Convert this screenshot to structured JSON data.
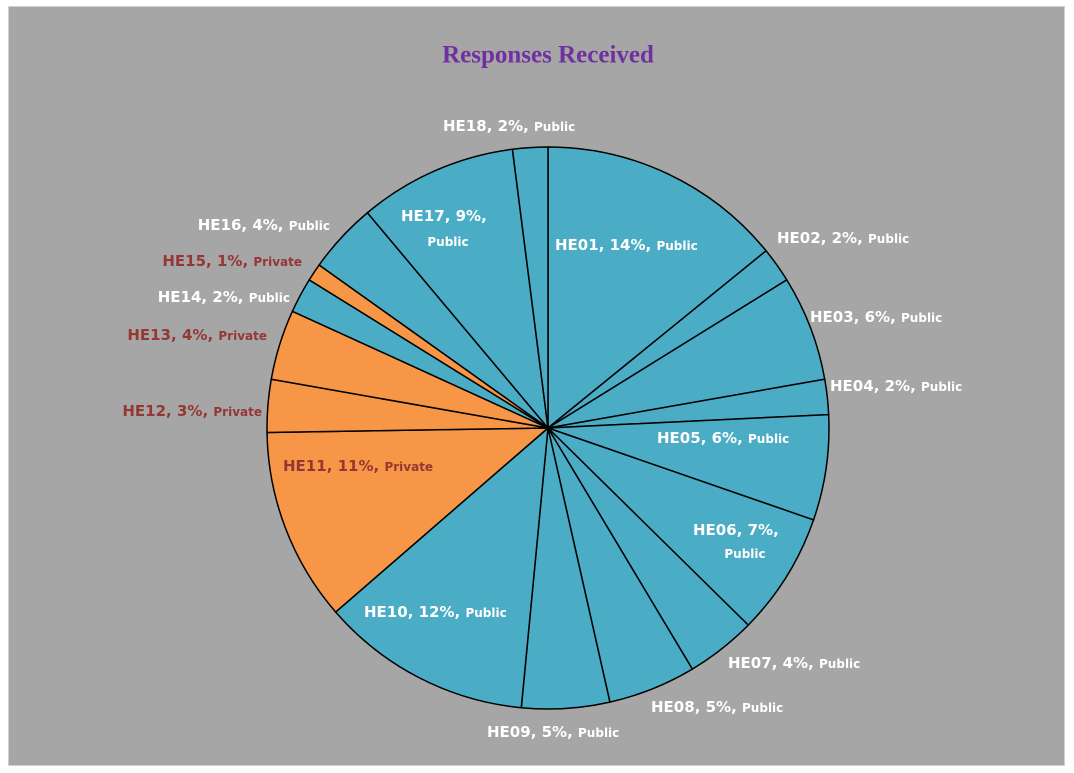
{
  "chart_data": {
    "type": "pie",
    "title": "Responses Received",
    "categories": [
      "HE01",
      "HE02",
      "HE03",
      "HE04",
      "HE05",
      "HE06",
      "HE07",
      "HE08",
      "HE09",
      "HE10",
      "HE11",
      "HE12",
      "HE13",
      "HE14",
      "HE15",
      "HE16",
      "HE17",
      "HE18"
    ],
    "values": [
      14,
      2,
      6,
      2,
      6,
      7,
      4,
      5,
      5,
      12,
      11,
      3,
      4,
      2,
      1,
      4,
      9,
      2
    ],
    "value_labels": [
      "14%",
      "2%",
      "6%",
      "2%",
      "6%",
      "7%",
      "4%",
      "5%",
      "5%",
      "12%",
      "11%",
      "3%",
      "4%",
      "2%",
      "1%",
      "4%",
      "9%",
      "2%"
    ],
    "sectors": [
      "Public",
      "Public",
      "Public",
      "Public",
      "Public",
      "Public",
      "Public",
      "Public",
      "Public",
      "Public",
      "Private",
      "Private",
      "Private",
      "Public",
      "Private",
      "Public",
      "Public",
      "Public"
    ],
    "sector_colors": {
      "Public": "#4bacc6",
      "Private": "#f79646"
    },
    "label_colors": {
      "Public": "#ffffff",
      "Private": "#953735"
    }
  }
}
